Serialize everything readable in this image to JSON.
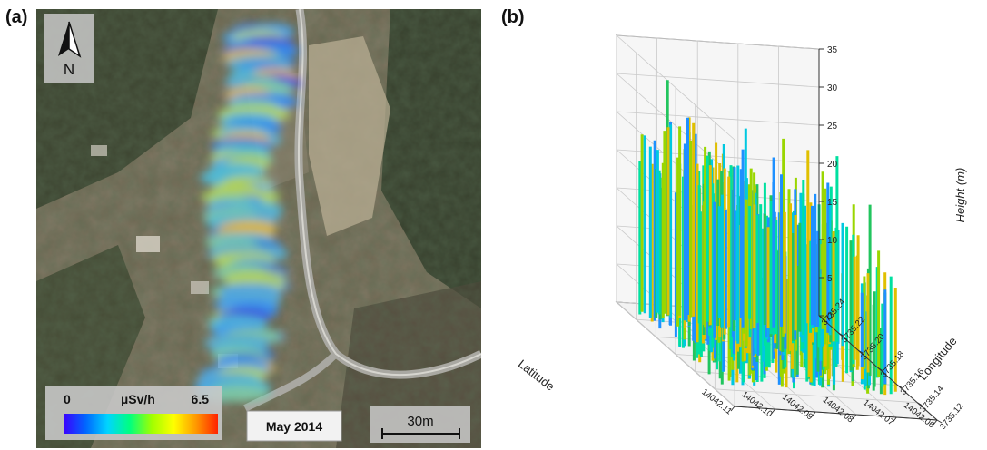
{
  "panels": {
    "a_label": "(a)",
    "b_label": "(b)"
  },
  "map": {
    "north_letter": "N",
    "colorbar": {
      "min": "0",
      "max": "6.5",
      "unit": "µSv/h",
      "colors": [
        "#3b00ff",
        "#0066ff",
        "#00d5ff",
        "#00ff80",
        "#a0ff00",
        "#ffff00",
        "#ff9900",
        "#ff2200"
      ]
    },
    "date": "May 2014",
    "scalebar": "30m"
  },
  "chart_data": {
    "type": "scatter",
    "subtype": "3d-vertical-bars",
    "zlabel": "Height (m)",
    "xlabel": "Latitude",
    "ylabel": "Longitude",
    "z_ticks": [
      "0",
      "5",
      "10",
      "15",
      "20",
      "25",
      "30",
      "35"
    ],
    "latitude_ticks": [
      "14042.11",
      "14042.10",
      "14042.09",
      "14042.08",
      "14042.07",
      "14042.06"
    ],
    "longitude_ticks": [
      "3735.12",
      "3735.14",
      "3735.16",
      "3735.18",
      "3735.20",
      "3735.22",
      "3735.24"
    ],
    "zlim": [
      0,
      35
    ],
    "latitude_range": [
      14042.06,
      14042.11
    ],
    "longitude_range": [
      3735.12,
      3735.24
    ],
    "grid": true,
    "series_colors": [
      "#00c8e0",
      "#22c55e",
      "#1e90ff",
      "#9ad600",
      "#00e0a0",
      "#e0c000"
    ]
  }
}
